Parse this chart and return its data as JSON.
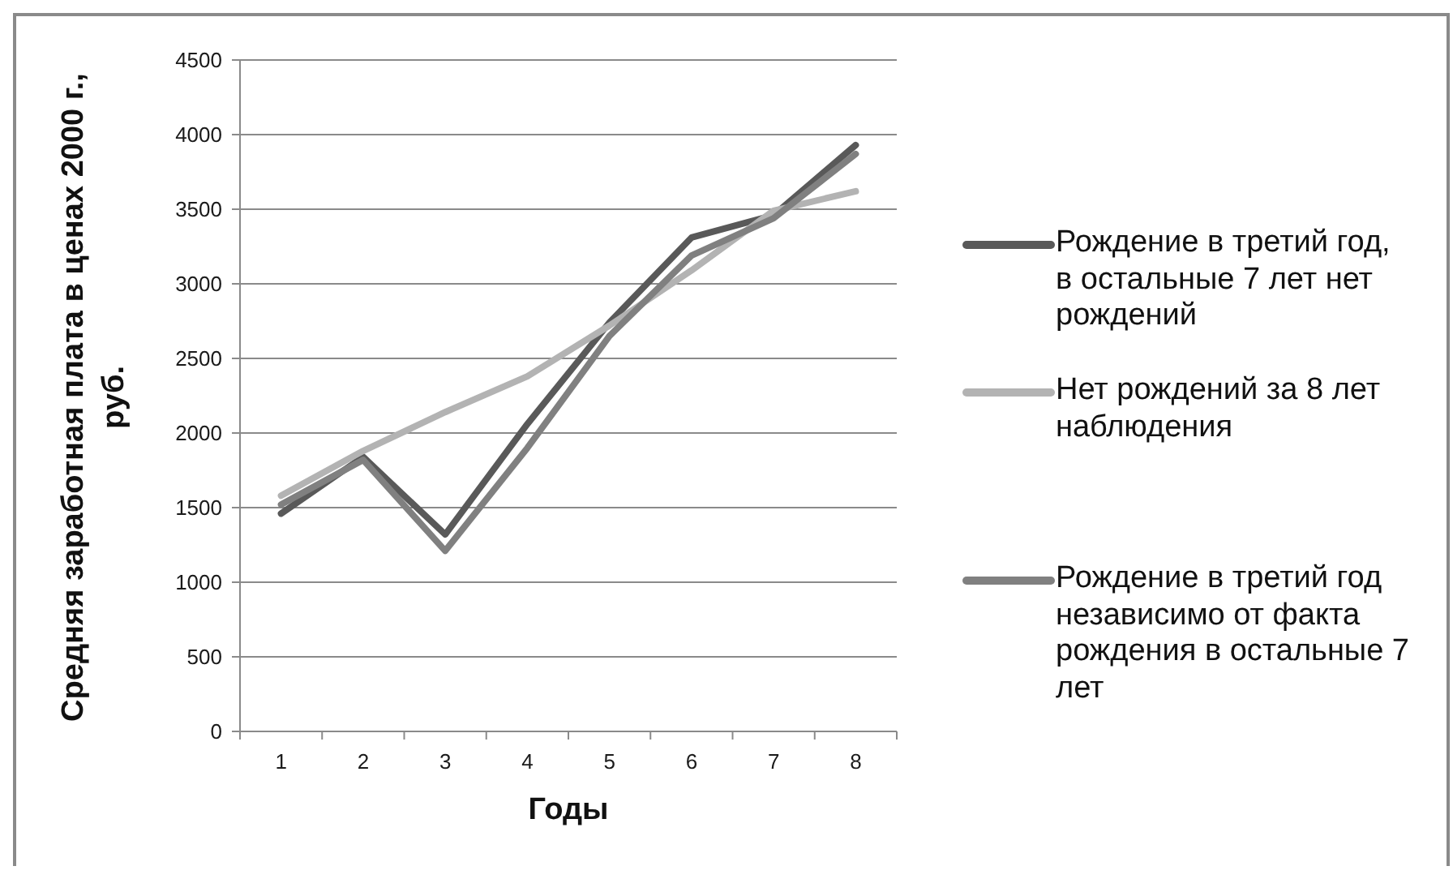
{
  "chart_data": {
    "type": "line",
    "xlabel": "Годы",
    "ylabel": "Средняя заработная плата в ценах 2000 г., руб.",
    "categories": [
      "1",
      "2",
      "3",
      "4",
      "5",
      "6",
      "7",
      "8"
    ],
    "ylim": [
      0,
      4500
    ],
    "yticks": [
      0,
      500,
      1000,
      1500,
      2000,
      2500,
      3000,
      3500,
      4000,
      4500
    ],
    "grid": "y",
    "legend": "right",
    "marker": "none",
    "line_style": "solid",
    "series": [
      {
        "name": "Рождение в третий год, в остальные 7 лет нет рождений",
        "color": "#595959",
        "values": [
          1460,
          1840,
          1320,
          2060,
          2740,
          3310,
          3460,
          3930
        ]
      },
      {
        "name": "Нет рождений за 8 лет наблюдения",
        "color": "#b3b3b3",
        "values": [
          1580,
          1880,
          2140,
          2380,
          2720,
          3090,
          3490,
          3620
        ]
      },
      {
        "name": "Рождение в третий год независимо от факта рождения в остальные 7 лет",
        "color": "#808080",
        "values": [
          1520,
          1820,
          1210,
          1900,
          2650,
          3190,
          3440,
          3870
        ]
      }
    ]
  }
}
